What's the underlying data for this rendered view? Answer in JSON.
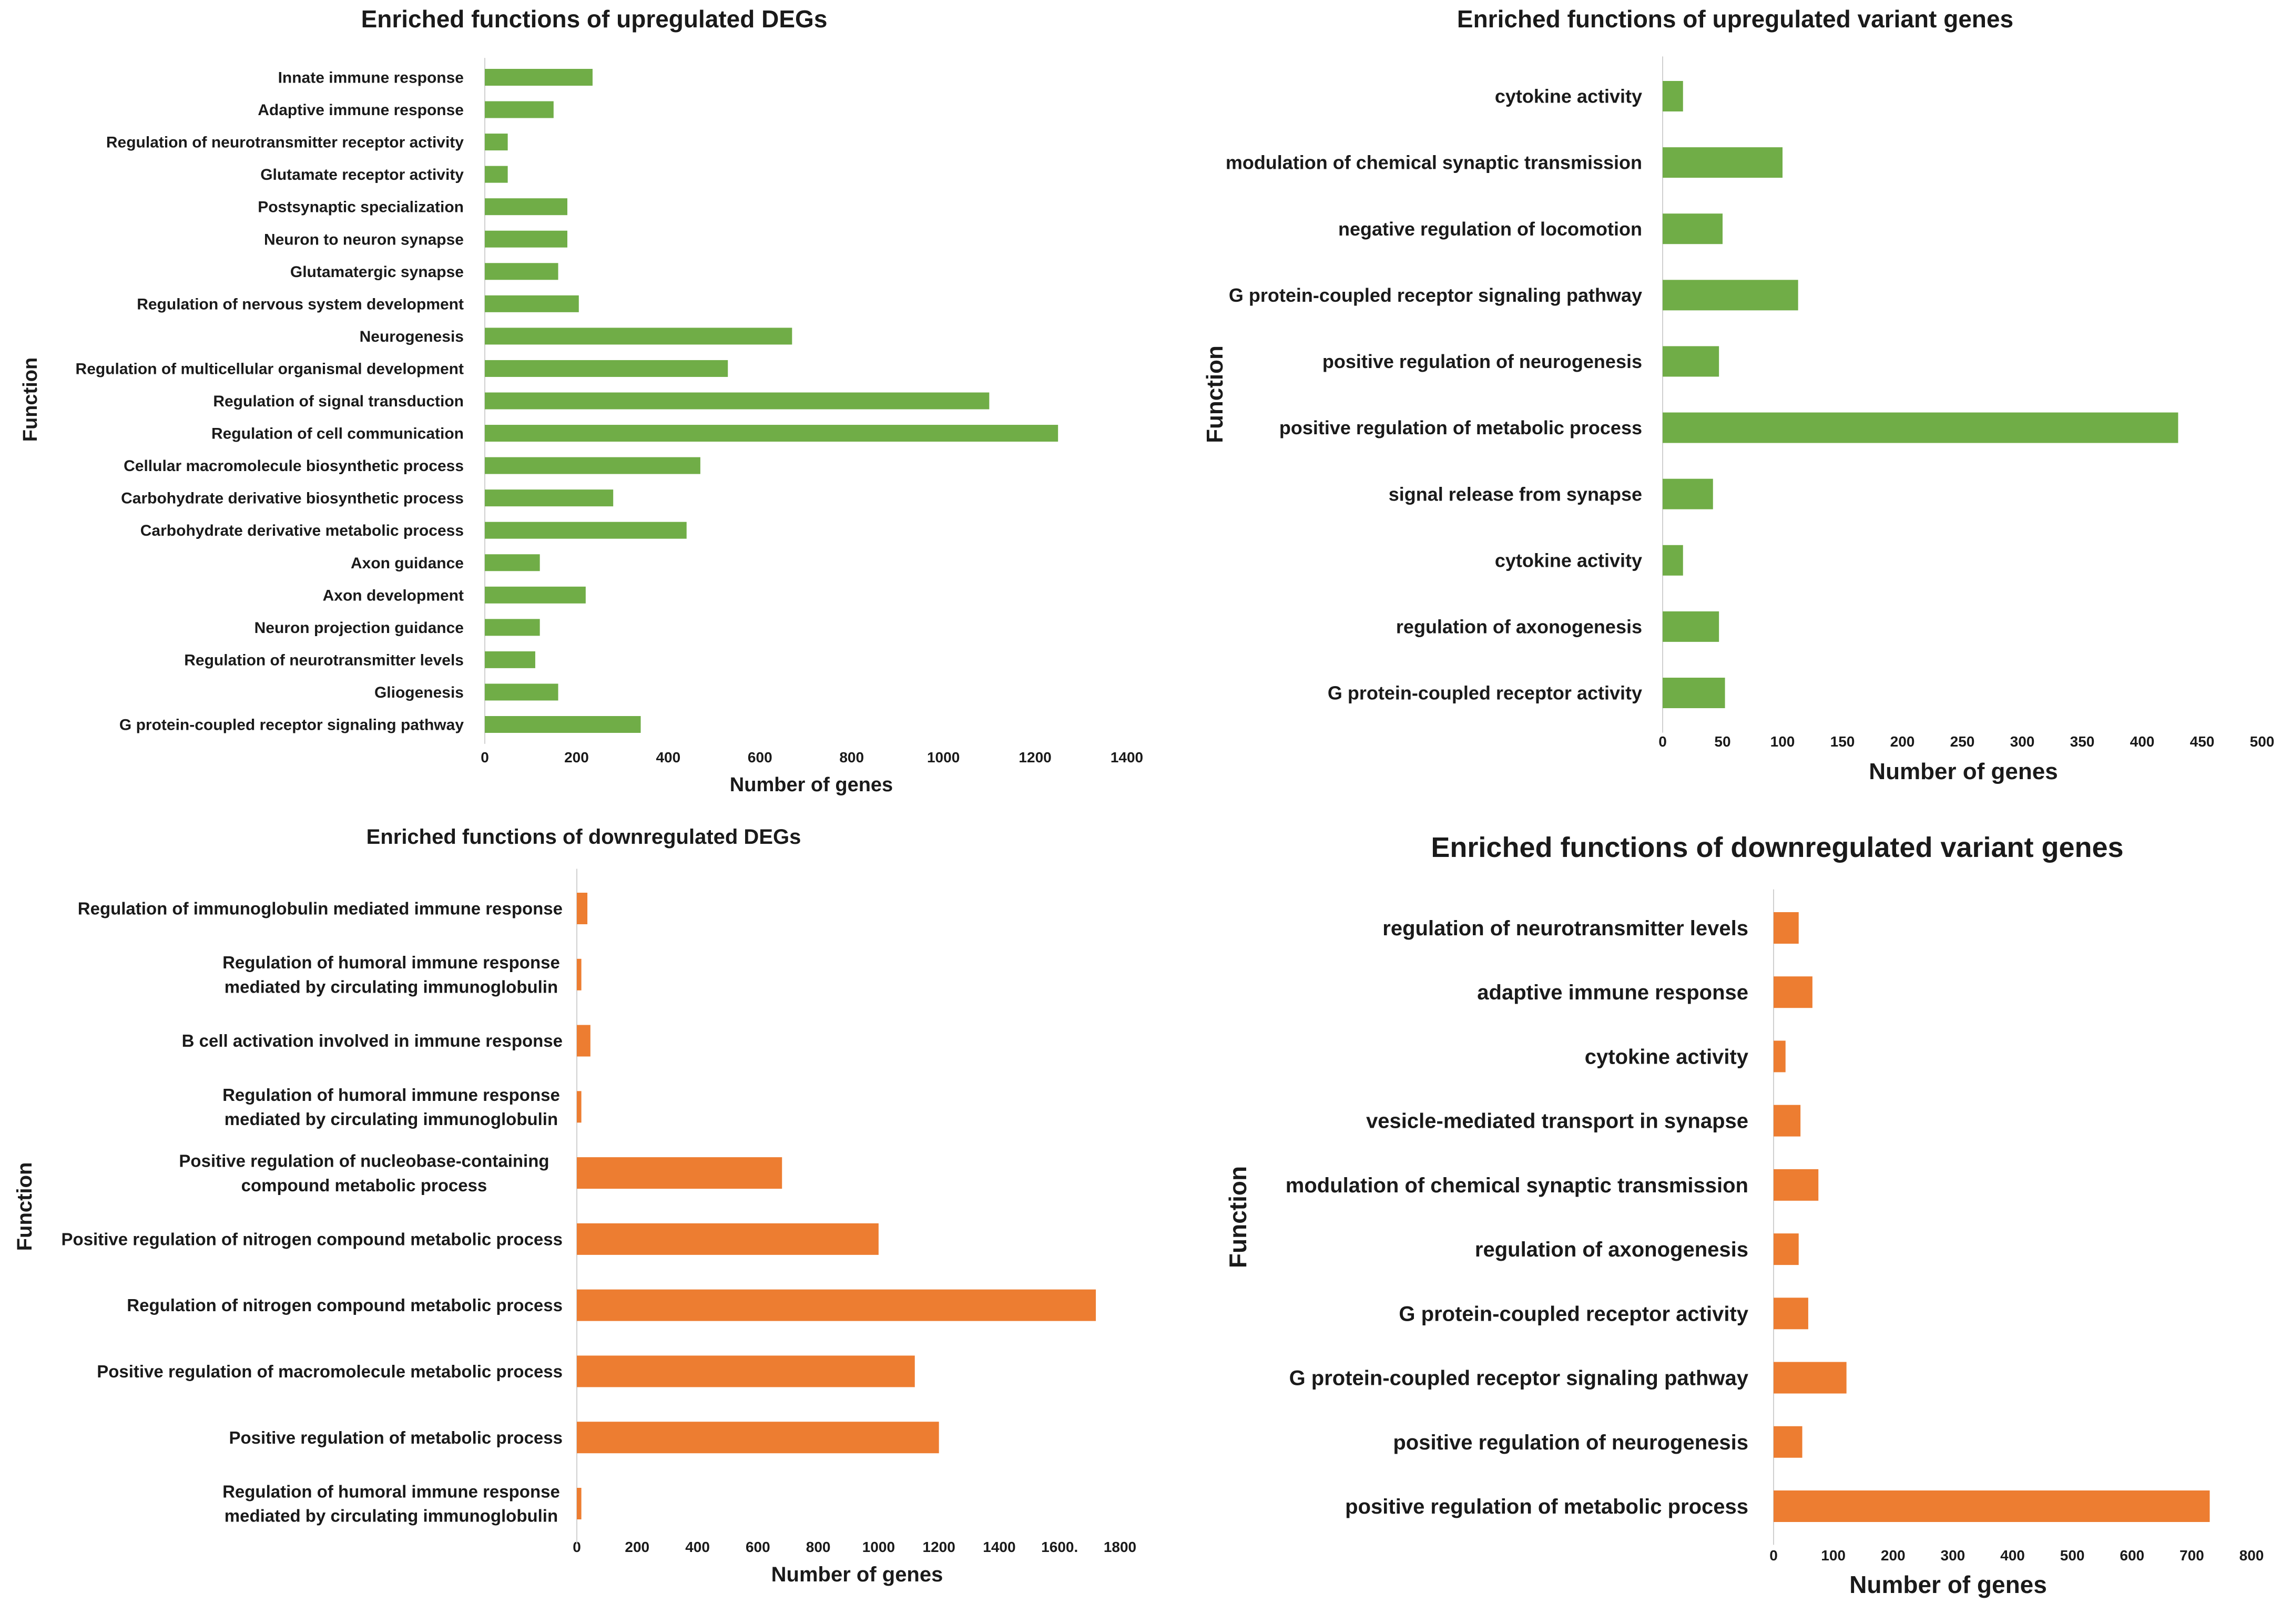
{
  "chart_data": [
    {
      "id": "up-degs",
      "type": "bar",
      "orientation": "horizontal",
      "title": "Enriched functions of upregulated DEGs",
      "xlabel": "Number of genes",
      "ylabel": "Function",
      "xlim": [
        0,
        1400
      ],
      "xticks": [
        0,
        200,
        400,
        600,
        800,
        1000,
        1200,
        1400
      ],
      "color": "#70AD47",
      "categories": [
        "Innate immune response",
        "Adaptive immune response",
        "Regulation of neurotransmitter receptor activity",
        "Glutamate receptor activity",
        "Postsynaptic specialization",
        "Neuron to neuron synapse",
        "Glutamatergic synapse",
        "Regulation of nervous system development",
        "Neurogenesis",
        "Regulation of multicellular organismal development",
        "Regulation of signal transduction",
        "Regulation of cell communication",
        "Cellular macromolecule biosynthetic process",
        "Carbohydrate derivative biosynthetic process",
        "Carbohydrate derivative metabolic process",
        "Axon guidance",
        "Axon development",
        "Neuron projection guidance",
        "Regulation of neurotransmitter levels",
        "Gliogenesis",
        "G protein-coupled receptor signaling pathway"
      ],
      "values": [
        235,
        150,
        50,
        50,
        180,
        180,
        160,
        205,
        670,
        530,
        1100,
        1250,
        470,
        280,
        440,
        120,
        220,
        120,
        110,
        160,
        340
      ]
    },
    {
      "id": "up-variant",
      "type": "bar",
      "orientation": "horizontal",
      "title": "Enriched functions of upregulated variant genes",
      "xlabel": "Number of genes",
      "ylabel": "Function",
      "xlim": [
        0,
        500
      ],
      "xticks": [
        0,
        50,
        100,
        150,
        200,
        250,
        300,
        350,
        400,
        450,
        500
      ],
      "color": "#70AD47",
      "categories": [
        "cytokine activity",
        "modulation of chemical synaptic transmission",
        "negative regulation of locomotion",
        "G protein-coupled receptor signaling pathway",
        "positive regulation of neurogenesis",
        "positive regulation of metabolic process",
        "signal release from synapse",
        "cytokine activity",
        "regulation of axonogenesis",
        "G protein-coupled receptor activity"
      ],
      "values": [
        17,
        100,
        50,
        113,
        47,
        430,
        42,
        17,
        47,
        52
      ]
    },
    {
      "id": "down-degs",
      "type": "bar",
      "orientation": "horizontal",
      "title": "Enriched functions of downregulated DEGs",
      "xlabel": "Number of genes",
      "ylabel": "Function",
      "xlim": [
        0,
        1800
      ],
      "xticks": [
        0,
        200,
        400,
        600,
        800,
        1000,
        1200,
        1400,
        1600,
        1800
      ],
      "xtick_labels": [
        "0",
        "200",
        "400",
        "600",
        "800",
        "1000",
        "1200",
        "1400",
        "1600.",
        "1800"
      ],
      "color": "#ED7D31",
      "categories": [
        "Regulation of immunoglobulin mediated immune response",
        "Regulation of humoral immune response mediated by circulating immunoglobulin",
        "B cell activation involved in immune response",
        "Regulation of humoral immune response mediated by circulating immunoglobulin",
        "Positive regulation of nucleobase-containing compound metabolic process",
        "Positive regulation of nitrogen compound metabolic process",
        "Regulation of nitrogen compound metabolic process",
        "Positive regulation of macromolecule metabolic process",
        "Positive regulation of metabolic process",
        "Regulation of humoral immune response mediated by circulating immunoglobulin"
      ],
      "values": [
        35,
        15,
        45,
        15,
        680,
        1000,
        1720,
        1120,
        1200,
        15
      ]
    },
    {
      "id": "down-variant",
      "type": "bar",
      "orientation": "horizontal",
      "title": "Enriched functions of downregulated variant genes",
      "xlabel": "Number of genes",
      "ylabel": "Function",
      "xlim": [
        0,
        800
      ],
      "xticks": [
        0,
        100,
        200,
        300,
        400,
        500,
        600,
        700,
        800
      ],
      "color": "#ED7D31",
      "categories": [
        "regulation of neurotransmitter levels",
        "adaptive immune response",
        "cytokine activity",
        "vesicle-mediated transport in synapse",
        "modulation of chemical synaptic transmission",
        "regulation of axonogenesis",
        "G protein-coupled receptor activity",
        "G protein-coupled receptor signaling pathway",
        "positive regulation of neurogenesis",
        "positive regulation of metabolic process"
      ],
      "values": [
        42,
        65,
        20,
        45,
        75,
        42,
        58,
        122,
        48,
        730
      ]
    }
  ]
}
